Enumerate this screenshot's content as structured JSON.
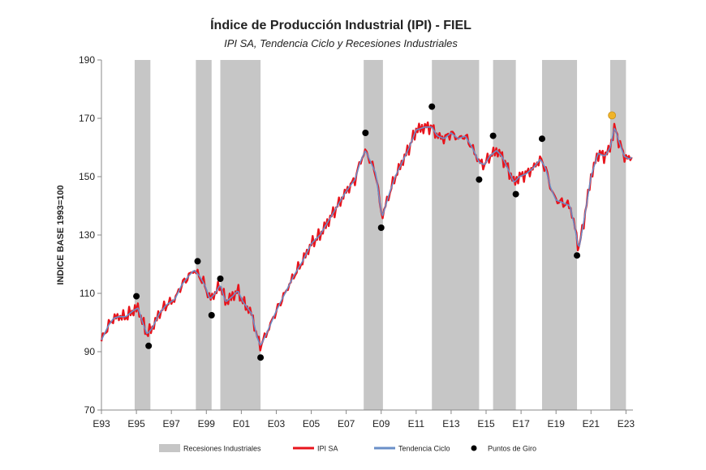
{
  "chart_data": {
    "type": "line",
    "title": "Índice de Producción Industrial (IPI) - FIEL",
    "subtitle": "IPI SA, Tendencia Ciclo y Recesiones Industriales",
    "ylabel": "INDICE BASE 1993=100",
    "xlabel": "",
    "ylim": [
      70,
      190
    ],
    "yticks": [
      70,
      90,
      110,
      130,
      150,
      170,
      190
    ],
    "xlim": [
      1993.0,
      2023.4
    ],
    "xticks": [
      {
        "label": "E93",
        "x": 1993.0
      },
      {
        "label": "E95",
        "x": 1995.0
      },
      {
        "label": "E97",
        "x": 1997.0
      },
      {
        "label": "E99",
        "x": 1999.0
      },
      {
        "label": "E01",
        "x": 2001.0
      },
      {
        "label": "E03",
        "x": 2003.0
      },
      {
        "label": "E05",
        "x": 2005.0
      },
      {
        "label": "E07",
        "x": 2007.0
      },
      {
        "label": "E09",
        "x": 2009.0
      },
      {
        "label": "E11",
        "x": 2011.0
      },
      {
        "label": "E13",
        "x": 2013.0
      },
      {
        "label": "E15",
        "x": 2015.0
      },
      {
        "label": "E17",
        "x": 2017.0
      },
      {
        "label": "E19",
        "x": 2019.0
      },
      {
        "label": "E21",
        "x": 2021.0
      },
      {
        "label": "E23",
        "x": 2023.0
      }
    ],
    "recessions": [
      [
        1994.9,
        1995.8
      ],
      [
        1998.4,
        1999.3
      ],
      [
        1999.8,
        2002.1
      ],
      [
        2008.0,
        2009.1
      ],
      [
        2011.9,
        2014.6
      ],
      [
        2015.4,
        2016.7
      ],
      [
        2018.2,
        2020.2
      ],
      [
        2022.1,
        2023.0
      ]
    ],
    "trend_knots": [
      [
        1993.0,
        94
      ],
      [
        1993.4,
        99
      ],
      [
        1993.7,
        101.5
      ],
      [
        1994.0,
        102
      ],
      [
        1994.4,
        102
      ],
      [
        1994.8,
        104
      ],
      [
        1995.1,
        105
      ],
      [
        1995.3,
        101
      ],
      [
        1995.6,
        96
      ],
      [
        1995.9,
        98
      ],
      [
        1996.3,
        103
      ],
      [
        1996.7,
        106
      ],
      [
        1997.2,
        108
      ],
      [
        1997.6,
        113
      ],
      [
        1998.0,
        116
      ],
      [
        1998.3,
        118
      ],
      [
        1998.6,
        116
      ],
      [
        1998.9,
        113
      ],
      [
        1999.2,
        108
      ],
      [
        1999.5,
        110
      ],
      [
        1999.8,
        113
      ],
      [
        2000.1,
        107
      ],
      [
        2000.5,
        109
      ],
      [
        2000.8,
        111
      ],
      [
        2001.1,
        107
      ],
      [
        2001.6,
        103
      ],
      [
        2001.9,
        95
      ],
      [
        2002.1,
        92
      ],
      [
        2002.5,
        97
      ],
      [
        2003.0,
        104
      ],
      [
        2003.5,
        110
      ],
      [
        2004.0,
        116
      ],
      [
        2004.5,
        121
      ],
      [
        2005.0,
        127
      ],
      [
        2005.5,
        130
      ],
      [
        2006.0,
        135
      ],
      [
        2006.5,
        140
      ],
      [
        2007.0,
        145
      ],
      [
        2007.5,
        149
      ],
      [
        2007.8,
        155
      ],
      [
        2008.1,
        159
      ],
      [
        2008.4,
        155
      ],
      [
        2008.7,
        151
      ],
      [
        2008.9,
        142
      ],
      [
        2009.05,
        136
      ],
      [
        2009.4,
        143
      ],
      [
        2009.8,
        150
      ],
      [
        2010.2,
        155
      ],
      [
        2010.6,
        160
      ],
      [
        2011.0,
        166
      ],
      [
        2011.5,
        167
      ],
      [
        2011.9,
        167
      ],
      [
        2012.2,
        164
      ],
      [
        2012.6,
        163
      ],
      [
        2013.0,
        165
      ],
      [
        2013.4,
        163
      ],
      [
        2013.8,
        164
      ],
      [
        2014.2,
        160
      ],
      [
        2014.6,
        155
      ],
      [
        2014.9,
        154
      ],
      [
        2015.2,
        157
      ],
      [
        2015.6,
        159
      ],
      [
        2015.9,
        157
      ],
      [
        2016.3,
        152
      ],
      [
        2016.6,
        148
      ],
      [
        2016.9,
        150
      ],
      [
        2017.3,
        151
      ],
      [
        2017.7,
        153
      ],
      [
        2018.1,
        156
      ],
      [
        2018.4,
        153
      ],
      [
        2018.7,
        146
      ],
      [
        2019.0,
        142
      ],
      [
        2019.4,
        141
      ],
      [
        2019.8,
        140
      ],
      [
        2020.1,
        132
      ],
      [
        2020.3,
        125
      ],
      [
        2020.6,
        135
      ],
      [
        2021.0,
        150
      ],
      [
        2021.4,
        158
      ],
      [
        2021.8,
        157
      ],
      [
        2022.1,
        160
      ],
      [
        2022.35,
        167
      ],
      [
        2022.6,
        162
      ],
      [
        2022.9,
        157
      ],
      [
        2023.2,
        156
      ],
      [
        2023.4,
        157
      ]
    ],
    "turning_points": [
      {
        "x": 1995.0,
        "y": 109
      },
      {
        "x": 1995.7,
        "y": 92
      },
      {
        "x": 1998.5,
        "y": 121
      },
      {
        "x": 1999.3,
        "y": 102.5
      },
      {
        "x": 1999.8,
        "y": 115
      },
      {
        "x": 2002.1,
        "y": 88
      },
      {
        "x": 2008.1,
        "y": 165
      },
      {
        "x": 2009.0,
        "y": 132.5
      },
      {
        "x": 2011.9,
        "y": 174
      },
      {
        "x": 2014.6,
        "y": 149
      },
      {
        "x": 2015.4,
        "y": 164
      },
      {
        "x": 2016.7,
        "y": 144
      },
      {
        "x": 2018.2,
        "y": 163
      },
      {
        "x": 2020.2,
        "y": 123
      }
    ],
    "tentative_point": {
      "x": 2022.2,
      "y": 171
    },
    "series": [
      {
        "name": "IPI SA",
        "color": "#e8141c"
      },
      {
        "name": "Tendencia Ciclo",
        "color": "#6a8fc8"
      }
    ],
    "legend": [
      {
        "label": "Recesiones Industriales",
        "kind": "bar",
        "color": "#c6c6c6"
      },
      {
        "label": "IPI SA",
        "kind": "line",
        "color": "#e8141c"
      },
      {
        "label": "Tendencia Ciclo",
        "kind": "line",
        "color": "#6a8fc8"
      },
      {
        "label": "Puntos de Giro",
        "kind": "dot",
        "color": "#000000"
      }
    ],
    "colors": {
      "recession": "#c6c6c6",
      "ipi": "#e8141c",
      "trend": "#6a8fc8",
      "points": "#000000",
      "tentative": "#f0b429",
      "axis": "#888888"
    }
  }
}
